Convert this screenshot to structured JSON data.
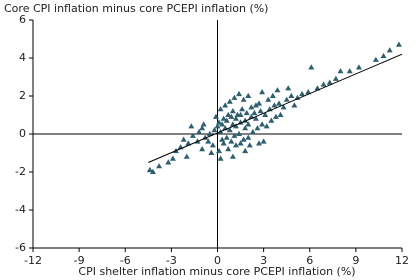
{
  "chart_data": {
    "type": "scatter",
    "y_axis_label": "Core CPI inflation minus core PCEPI inflation (%)",
    "x_axis_label": "CPI shelter inflation minus core PCEPI inflation (%)",
    "xlim": [
      -12,
      12
    ],
    "xticks": [
      -12,
      -9,
      -6,
      -3,
      0,
      3,
      6,
      9,
      12
    ],
    "ylim": [
      -6,
      6
    ],
    "yticks": [
      -6,
      -4,
      -2,
      0,
      2,
      4,
      6
    ],
    "series": [
      {
        "color": "#2f5f6e",
        "x": [
          0.2,
          0.5,
          0.8,
          1.0,
          1.2,
          1.5,
          1.8,
          2.0,
          2.2,
          2.5,
          0.3,
          0.6,
          0.9,
          1.1,
          1.4,
          1.7,
          2.0,
          2.3,
          2.6,
          2.9,
          0.1,
          0.4,
          0.7,
          1.0,
          1.3,
          1.6,
          1.9,
          2.2,
          2.5,
          2.8,
          3.1,
          3.4,
          3.7,
          4.0,
          4.3,
          3.2,
          3.5,
          3.8,
          4.1,
          4.5,
          4.8,
          3.0,
          2.7,
          -0.2,
          -0.5,
          -0.8,
          -1.0,
          -1.3,
          -1.6,
          -1.9,
          -0.3,
          -0.6,
          -0.9,
          -1.2,
          -0.1,
          0.2,
          0.5,
          0.8,
          1.1,
          1.4,
          1.7,
          2.0,
          0.4,
          1.2,
          2.1,
          -2.2,
          -2.4,
          -1.7,
          0.0,
          0.3,
          0.6,
          0.9,
          1.2,
          1.5,
          1.8,
          2.4,
          2.7,
          3.3,
          3.6,
          -0.4,
          0.1,
          0.7,
          1.5,
          -1.0,
          -2.0,
          -2.7,
          -3.2,
          -3.8,
          -4.2,
          -4.4,
          -2.9,
          5.2,
          5.5,
          5.9,
          6.1,
          6.5,
          6.9,
          7.3,
          7.7,
          8.0,
          8.6,
          9.2,
          10.3,
          10.8,
          11.2,
          11.8,
          4.6,
          3.9,
          2.9,
          5.0,
          1.0,
          0.2,
          1.8
        ],
        "values": [
          0.1,
          0.3,
          0.2,
          0.5,
          0.4,
          0.6,
          0.7,
          0.5,
          0.9,
          0.8,
          -0.3,
          -0.2,
          -0.4,
          -0.1,
          0.0,
          -0.3,
          -0.2,
          0.1,
          0.3,
          0.5,
          0.6,
          0.8,
          1.0,
          1.2,
          1.0,
          1.3,
          1.1,
          1.4,
          1.5,
          1.2,
          1.0,
          1.3,
          1.5,
          1.6,
          1.4,
          0.4,
          0.7,
          0.9,
          1.0,
          1.8,
          2.0,
          -0.4,
          -0.5,
          0.2,
          0.0,
          -0.2,
          0.3,
          -0.4,
          -0.1,
          -0.5,
          -0.6,
          -0.4,
          0.5,
          0.1,
          0.9,
          1.3,
          1.5,
          1.7,
          1.9,
          2.1,
          1.8,
          2.0,
          -0.5,
          -0.6,
          -0.6,
          -0.3,
          -0.7,
          0.4,
          0.4,
          0.5,
          0.7,
          0.9,
          0.8,
          1.0,
          0.3,
          1.1,
          1.6,
          1.8,
          2.0,
          -1.0,
          -0.9,
          -0.8,
          -0.5,
          -0.8,
          -1.2,
          -0.9,
          -1.5,
          -1.7,
          -2.0,
          -1.9,
          -1.3,
          1.9,
          2.1,
          2.2,
          3.5,
          2.4,
          2.6,
          2.7,
          2.9,
          3.3,
          3.3,
          3.5,
          3.9,
          4.1,
          4.4,
          4.7,
          2.4,
          2.3,
          2.2,
          1.5,
          -1.2,
          -1.3,
          -0.9
        ]
      }
    ],
    "trend_line": {
      "x": [
        -4.5,
        12
      ],
      "y": [
        -1.5,
        4.2
      ],
      "color": "#000000"
    }
  }
}
